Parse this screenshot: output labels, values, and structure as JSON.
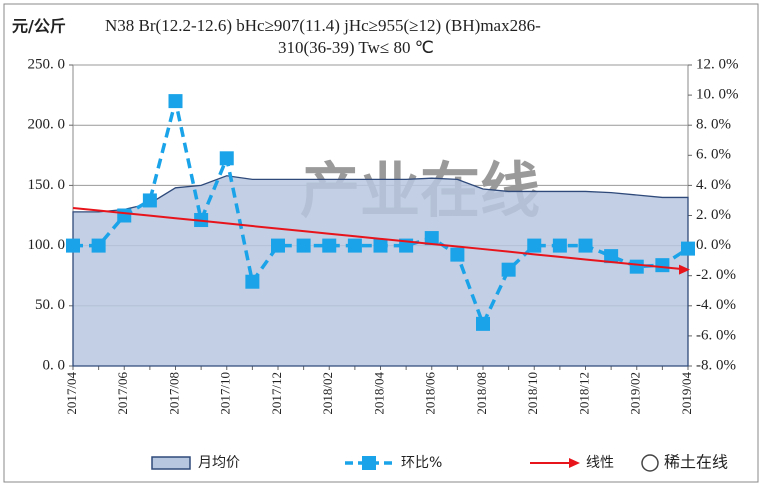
{
  "chart_data": {
    "type": "line",
    "ylabel": "元/公斤",
    "title": [
      "N38 Br(12.2-12.6) bHc≥907(11.4) jHc≥955(≥12) (BH)max286-",
      "310(36-39) Tw≤ 80 ℃"
    ],
    "watermark": "产业在线",
    "credit": "稀土在线",
    "categories": [
      "2017/04",
      null,
      "2017/06",
      null,
      "2017/08",
      null,
      "2017/10",
      null,
      "2017/12",
      null,
      "2018/02",
      null,
      "2018/04",
      null,
      "2018/06",
      null,
      "2018/08",
      null,
      "2018/10",
      null,
      "2018/12",
      null,
      "2019/02",
      null,
      "2019/04"
    ],
    "ylim": [
      0,
      250
    ],
    "yticks": [
      {
        "value": 0,
        "label": "0. 0"
      },
      {
        "value": 50,
        "label": "50. 0"
      },
      {
        "value": 100,
        "label": "100. 0"
      },
      {
        "value": 150,
        "label": "150. 0"
      },
      {
        "value": 200,
        "label": "200. 0"
      },
      {
        "value": 250,
        "label": "250. 0"
      }
    ],
    "y2lim": [
      -8,
      12
    ],
    "y2ticks": [
      {
        "value": -8,
        "label": "-8. 0%"
      },
      {
        "value": -6,
        "label": "-6. 0%"
      },
      {
        "value": -4,
        "label": "-4. 0%"
      },
      {
        "value": -2,
        "label": "-2. 0%"
      },
      {
        "value": 0,
        "label": "0. 0%"
      },
      {
        "value": 2,
        "label": "2. 0%"
      },
      {
        "value": 4,
        "label": "4. 0%"
      },
      {
        "value": 6,
        "label": "6. 0%"
      },
      {
        "value": 8,
        "label": "8. 0%"
      },
      {
        "value": 10,
        "label": "10. 0%"
      },
      {
        "value": 12,
        "label": "12. 0%"
      }
    ],
    "grid": true,
    "series": [
      {
        "name": "月均价",
        "type": "area",
        "color": "#b7c7df",
        "values": [
          128,
          128,
          130,
          135,
          148,
          150,
          158,
          155,
          155,
          155,
          155,
          155,
          155,
          155,
          156,
          155,
          147,
          145,
          145,
          145,
          145,
          144,
          142,
          140,
          140
        ]
      },
      {
        "name": "环比%",
        "type": "line",
        "axis": "y2",
        "color": "#1aa3e8",
        "values": [
          0,
          0,
          2.0,
          3.0,
          9.6,
          1.7,
          5.8,
          -2.4,
          0,
          0,
          0,
          0,
          0,
          0,
          0.5,
          -0.6,
          -5.2,
          -1.6,
          0,
          0,
          0,
          -0.7,
          -1.4,
          -1.3,
          -0.2
        ]
      },
      {
        "name": "线性",
        "type": "trend",
        "axis": "y2",
        "color": "#e8141c",
        "values": [
          2.5,
          2.33,
          2.16,
          1.99,
          1.82,
          1.65,
          1.48,
          1.3,
          1.13,
          0.96,
          0.79,
          0.62,
          0.45,
          0.28,
          0.11,
          -0.06,
          -0.23,
          -0.4,
          -0.58,
          -0.75,
          -0.92,
          -1.09,
          -1.26,
          -1.43,
          -1.6
        ]
      }
    ]
  }
}
